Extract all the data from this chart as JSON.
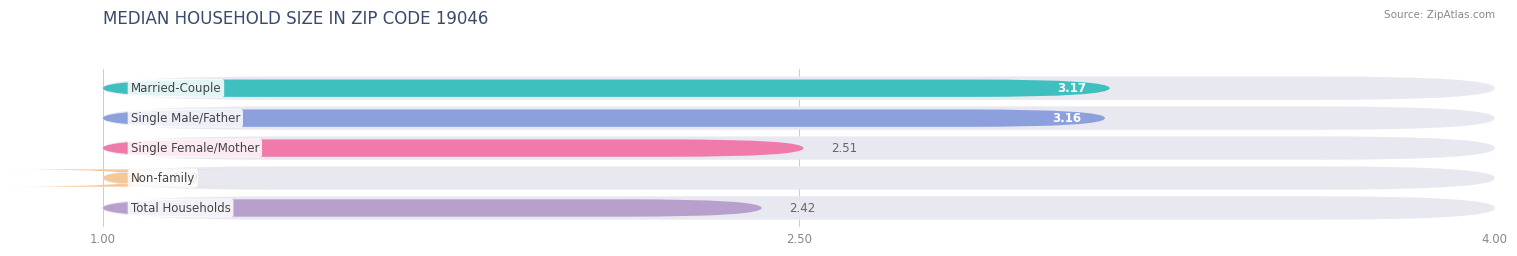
{
  "title": "MEDIAN HOUSEHOLD SIZE IN ZIP CODE 19046",
  "source": "Source: ZipAtlas.com",
  "categories": [
    "Married-Couple",
    "Single Male/Father",
    "Single Female/Mother",
    "Non-family",
    "Total Households"
  ],
  "values": [
    3.17,
    3.16,
    2.51,
    1.09,
    2.42
  ],
  "bar_colors": [
    "#40bfbf",
    "#8ca0dd",
    "#f07aaa",
    "#f5c898",
    "#b8a0cc"
  ],
  "track_color": "#e8e8f0",
  "xlim": [
    1.0,
    4.0
  ],
  "data_min": 1.0,
  "data_max": 4.0,
  "xticks": [
    1.0,
    2.5,
    4.0
  ],
  "xtick_labels": [
    "1.00",
    "2.50",
    "4.00"
  ],
  "title_fontsize": 12,
  "label_fontsize": 8.5,
  "value_fontsize": 8.5,
  "background_color": "#ffffff"
}
